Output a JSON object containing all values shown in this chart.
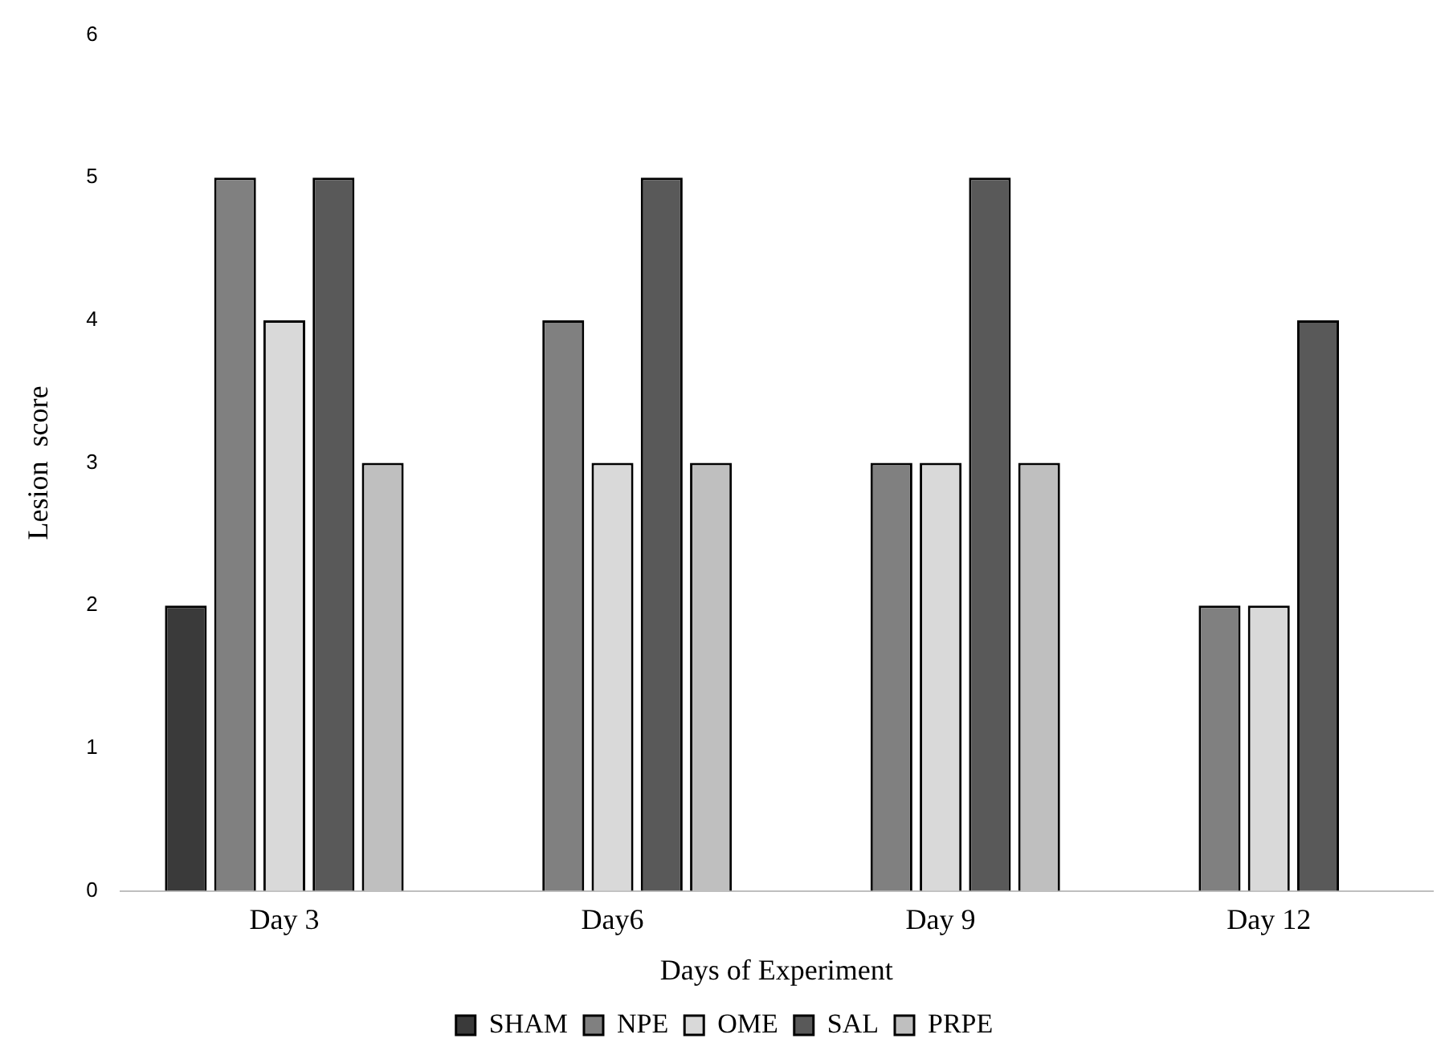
{
  "chart_data": {
    "type": "bar",
    "xlabel": "Days of Experiment",
    "ylabel": "Lesion  score",
    "categories": [
      "Day 3",
      "Day6",
      "Day 9",
      "Day 12"
    ],
    "series": [
      {
        "name": "SHAM",
        "color": "#3a3a3a",
        "values": [
          2,
          0,
          0,
          0
        ]
      },
      {
        "name": "NPE",
        "color": "#808080",
        "values": [
          5,
          4,
          3,
          2
        ]
      },
      {
        "name": "OME",
        "color": "#d9d9d9",
        "values": [
          4,
          3,
          3,
          2
        ]
      },
      {
        "name": "SAL",
        "color": "#595959",
        "values": [
          5,
          5,
          5,
          4
        ]
      },
      {
        "name": "PRPE",
        "color": "#bfbfbf",
        "values": [
          3,
          3,
          3,
          0
        ]
      }
    ],
    "ylim": [
      0,
      6
    ],
    "yticks": [
      0,
      1,
      2,
      3,
      4,
      5,
      6
    ],
    "grid": false,
    "legend": "bottom"
  }
}
